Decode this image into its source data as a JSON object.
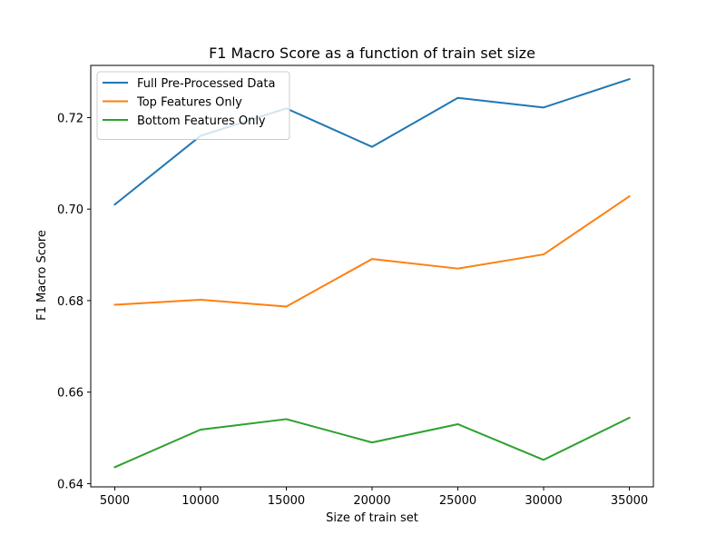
{
  "chart_data": {
    "type": "line",
    "title": "F1 Macro Score as a function of train set size",
    "xlabel": "Size of train set",
    "ylabel": "F1 Macro Score",
    "x": [
      5000,
      10000,
      15000,
      20000,
      25000,
      30000,
      35000
    ],
    "xticks": [
      5000,
      10000,
      15000,
      20000,
      25000,
      30000,
      35000
    ],
    "xlim": [
      3600,
      36400
    ],
    "yticks": [
      0.64,
      0.66,
      0.68,
      0.7,
      0.72
    ],
    "ytick_labels": [
      "0.64",
      "0.66",
      "0.68",
      "0.70",
      "0.72"
    ],
    "ylim": [
      0.6393,
      0.7314
    ],
    "grid": false,
    "legend_position": "top-left",
    "series": [
      {
        "name": "Full Pre-Processed Data",
        "color": "#1f77b4",
        "values": [
          0.701,
          0.716,
          0.722,
          0.7136,
          0.7243,
          0.7222,
          0.7284
        ]
      },
      {
        "name": "Top Features Only",
        "color": "#ff7f0e",
        "values": [
          0.6791,
          0.6802,
          0.6787,
          0.6891,
          0.687,
          0.6901,
          0.7028
        ]
      },
      {
        "name": "Bottom Features Only",
        "color": "#2ca02c",
        "values": [
          0.6436,
          0.6518,
          0.6541,
          0.649,
          0.653,
          0.6452,
          0.6544
        ]
      }
    ]
  }
}
